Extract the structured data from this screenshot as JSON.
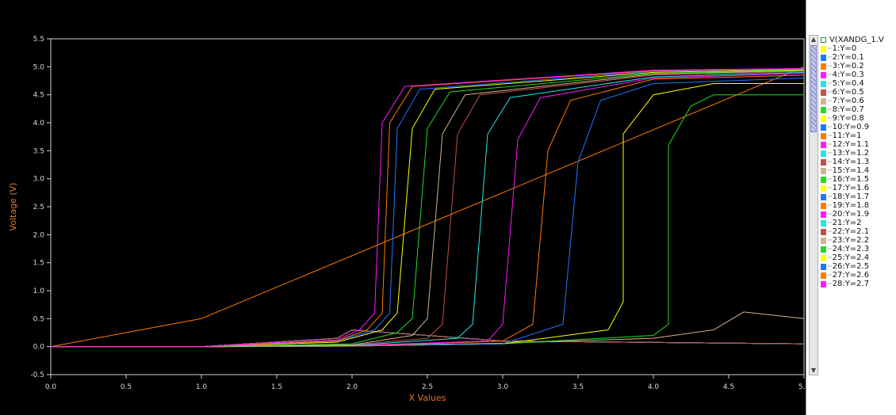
{
  "legend_header": "V(XANDG_1.V",
  "chart_data": {
    "type": "line",
    "title": "",
    "xlabel": "X Values",
    "ylabel": "Voltage (V)",
    "xlim": [
      0,
      5
    ],
    "ylim": [
      -0.5,
      5.5
    ],
    "x_ticks": [
      "0.0",
      "0.5",
      "1.0",
      "1.5",
      "2.0",
      "2.5",
      "3.0",
      "3.5",
      "4.0",
      "4.5",
      "5.0"
    ],
    "y_ticks": [
      "5.5",
      "5.0",
      "4.5",
      "4.0",
      "3.5",
      "3.0",
      "2.5",
      "2.0",
      "1.5",
      "1.0",
      "0.5",
      "0.0",
      "-0.5"
    ],
    "grid": false,
    "legend": "right",
    "series": [
      {
        "name": "1:Y=0",
        "color": "#ffff00",
        "points": [
          [
            0,
            0
          ],
          [
            1.0,
            0.0
          ],
          [
            1.9,
            0.15
          ],
          [
            2.0,
            0.3
          ],
          [
            3,
            0.1
          ],
          [
            5,
            0.05
          ]
        ]
      },
      {
        "name": "2:Y=0.1",
        "color": "#1e78ff",
        "points": [
          [
            0,
            0
          ],
          [
            1.0,
            0.0
          ],
          [
            1.9,
            0.15
          ],
          [
            2.0,
            0.3
          ],
          [
            3,
            0.1
          ],
          [
            5,
            0.05
          ]
        ]
      },
      {
        "name": "3:Y=0.2",
        "color": "#ff7a00",
        "points": [
          [
            0,
            0
          ],
          [
            1.0,
            0.0
          ],
          [
            1.9,
            0.15
          ],
          [
            2.0,
            0.3
          ],
          [
            3,
            0.1
          ],
          [
            5,
            0.05
          ]
        ]
      },
      {
        "name": "4:Y=0.3",
        "color": "#ff1aff",
        "points": [
          [
            0,
            0
          ],
          [
            1.0,
            0.0
          ],
          [
            1.9,
            0.15
          ],
          [
            2.0,
            0.3
          ],
          [
            3,
            0.1
          ],
          [
            5,
            0.05
          ]
        ]
      },
      {
        "name": "5:Y=0.4",
        "color": "#22e6e6",
        "points": [
          [
            0,
            0
          ],
          [
            1.0,
            0.0
          ],
          [
            1.9,
            0.15
          ],
          [
            2.0,
            0.3
          ],
          [
            3,
            0.1
          ],
          [
            5,
            0.05
          ]
        ]
      },
      {
        "name": "6:Y=0.5",
        "color": "#c0504d",
        "points": [
          [
            0,
            0
          ],
          [
            1.0,
            0.0
          ],
          [
            1.9,
            0.15
          ],
          [
            2.0,
            0.3
          ],
          [
            3,
            0.1
          ],
          [
            5,
            0.05
          ]
        ]
      },
      {
        "name": "7:Y=0.6",
        "color": "#d2b48c",
        "points": [
          [
            0,
            0
          ],
          [
            1.0,
            0.0
          ],
          [
            1.9,
            0.15
          ],
          [
            2.0,
            0.3
          ],
          [
            3,
            0.1
          ],
          [
            5,
            0.05
          ]
        ]
      },
      {
        "name": "8:Y=0.7",
        "color": "#22dd22",
        "points": [
          [
            0,
            0
          ],
          [
            1.0,
            0.0
          ],
          [
            1.9,
            0.15
          ],
          [
            2.0,
            0.3
          ],
          [
            3,
            0.1
          ],
          [
            5,
            0.05
          ]
        ]
      },
      {
        "name": "9:Y=0.8",
        "color": "#ffff00",
        "points": [
          [
            0,
            0
          ],
          [
            1.0,
            0.0
          ],
          [
            1.9,
            0.15
          ],
          [
            2.0,
            0.3
          ],
          [
            3,
            0.1
          ],
          [
            5,
            0.05
          ]
        ]
      },
      {
        "name": "10:Y=0.9",
        "color": "#1e78ff",
        "points": [
          [
            0,
            0
          ],
          [
            1.0,
            0.0
          ],
          [
            1.9,
            0.15
          ],
          [
            2.0,
            0.3
          ],
          [
            3,
            0.1
          ],
          [
            5,
            0.05
          ]
        ]
      },
      {
        "name": "11:Y=1",
        "color": "#ff7a00",
        "points": [
          [
            0,
            0
          ],
          [
            1.0,
            0.5
          ],
          [
            5,
            5.0
          ]
        ]
      },
      {
        "name": "12:Y=1.1",
        "color": "#ff1aff",
        "points": [
          [
            0,
            0
          ],
          [
            1.0,
            0.0
          ],
          [
            1.9,
            0.15
          ],
          [
            2.0,
            0.3
          ],
          [
            3,
            0.1
          ],
          [
            5,
            0.05
          ]
        ]
      },
      {
        "name": "13:Y=1.2",
        "color": "#22e6e6",
        "points": [
          [
            0,
            0
          ],
          [
            1.0,
            0.0
          ],
          [
            1.9,
            0.15
          ],
          [
            2.0,
            0.3
          ],
          [
            3,
            0.1
          ],
          [
            5,
            0.05
          ]
        ]
      },
      {
        "name": "14:Y=1.3",
        "color": "#c0504d",
        "points": [
          [
            0,
            0
          ],
          [
            1.0,
            0.0
          ],
          [
            1.9,
            0.15
          ],
          [
            2.0,
            0.3
          ],
          [
            3,
            0.1
          ],
          [
            5,
            0.05
          ]
        ]
      },
      {
        "name": "15:Y=1.4",
        "color": "#d2b48c",
        "points": [
          [
            0,
            0
          ],
          [
            1.0,
            0.0
          ],
          [
            2.0,
            0.02
          ],
          [
            3,
            0.06
          ],
          [
            4,
            0.15
          ],
          [
            4.4,
            0.3
          ],
          [
            4.6,
            0.62
          ],
          [
            5,
            0.5
          ]
        ]
      },
      {
        "name": "16:Y=1.5",
        "color": "#22dd22",
        "points": [
          [
            0,
            0
          ],
          [
            1.0,
            0.0
          ],
          [
            2.0,
            0.01
          ],
          [
            3,
            0.05
          ],
          [
            4,
            0.2
          ],
          [
            4.1,
            0.4
          ],
          [
            4.1,
            3.6
          ],
          [
            4.25,
            4.3
          ],
          [
            4.4,
            4.5
          ],
          [
            5,
            4.5
          ]
        ]
      },
      {
        "name": "17:Y=1.6",
        "color": "#ffff00",
        "points": [
          [
            0,
            0
          ],
          [
            1.0,
            0.0
          ],
          [
            2.0,
            0.01
          ],
          [
            3,
            0.05
          ],
          [
            3.7,
            0.3
          ],
          [
            3.8,
            0.8
          ],
          [
            3.8,
            3.8
          ],
          [
            4.0,
            4.5
          ],
          [
            4.4,
            4.7
          ],
          [
            5,
            4.7
          ]
        ]
      },
      {
        "name": "18:Y=1.7",
        "color": "#1e78ff",
        "points": [
          [
            0,
            0
          ],
          [
            1.0,
            0.0
          ],
          [
            2.0,
            0.01
          ],
          [
            3,
            0.05
          ],
          [
            3.4,
            0.4
          ],
          [
            3.5,
            3.3
          ],
          [
            3.65,
            4.4
          ],
          [
            4.0,
            4.7
          ],
          [
            5,
            4.8
          ]
        ]
      },
      {
        "name": "19:Y=1.8",
        "color": "#ff7a00",
        "points": [
          [
            0,
            0
          ],
          [
            1.0,
            0.0
          ],
          [
            2.0,
            0.01
          ],
          [
            3,
            0.1
          ],
          [
            3.2,
            0.4
          ],
          [
            3.3,
            3.5
          ],
          [
            3.45,
            4.4
          ],
          [
            4.0,
            4.78
          ],
          [
            5,
            4.85
          ]
        ]
      },
      {
        "name": "20:Y=1.9",
        "color": "#ff1aff",
        "points": [
          [
            0,
            0
          ],
          [
            1.0,
            0.0
          ],
          [
            2.0,
            0.02
          ],
          [
            2.9,
            0.1
          ],
          [
            3.0,
            0.4
          ],
          [
            3.1,
            3.7
          ],
          [
            3.25,
            4.45
          ],
          [
            4.0,
            4.8
          ],
          [
            5,
            4.88
          ]
        ]
      },
      {
        "name": "21:Y=2",
        "color": "#22e6e6",
        "points": [
          [
            0,
            0
          ],
          [
            1.0,
            0.0
          ],
          [
            2.0,
            0.02
          ],
          [
            2.7,
            0.15
          ],
          [
            2.8,
            0.4
          ],
          [
            2.9,
            3.8
          ],
          [
            3.05,
            4.45
          ],
          [
            4.0,
            4.82
          ],
          [
            5,
            4.9
          ]
        ]
      },
      {
        "name": "22:Y=2.1",
        "color": "#c0504d",
        "points": [
          [
            0,
            0
          ],
          [
            1.0,
            0.0
          ],
          [
            2.0,
            0.03
          ],
          [
            2.5,
            0.15
          ],
          [
            2.6,
            0.4
          ],
          [
            2.7,
            3.8
          ],
          [
            2.85,
            4.5
          ],
          [
            4.0,
            4.85
          ],
          [
            5,
            4.92
          ]
        ]
      },
      {
        "name": "23:Y=2.2",
        "color": "#d2b48c",
        "points": [
          [
            0,
            0
          ],
          [
            1.0,
            0.0
          ],
          [
            2.0,
            0.03
          ],
          [
            2.4,
            0.2
          ],
          [
            2.5,
            0.5
          ],
          [
            2.6,
            3.8
          ],
          [
            2.75,
            4.5
          ],
          [
            4.0,
            4.87
          ],
          [
            5,
            4.93
          ]
        ]
      },
      {
        "name": "24:Y=2.3",
        "color": "#22dd22",
        "points": [
          [
            0,
            0
          ],
          [
            1.0,
            0.0
          ],
          [
            2.0,
            0.05
          ],
          [
            2.3,
            0.25
          ],
          [
            2.4,
            0.5
          ],
          [
            2.5,
            3.9
          ],
          [
            2.65,
            4.55
          ],
          [
            4.0,
            4.88
          ],
          [
            5,
            4.94
          ]
        ]
      },
      {
        "name": "25:Y=2.4",
        "color": "#ffff00",
        "points": [
          [
            0,
            0
          ],
          [
            1.0,
            0.0
          ],
          [
            1.9,
            0.08
          ],
          [
            2.2,
            0.3
          ],
          [
            2.3,
            0.6
          ],
          [
            2.4,
            3.9
          ],
          [
            2.55,
            4.6
          ],
          [
            4.0,
            4.9
          ],
          [
            5,
            4.95
          ]
        ]
      },
      {
        "name": "26:Y=2.5",
        "color": "#1e78ff",
        "points": [
          [
            0,
            0
          ],
          [
            1.0,
            0.0
          ],
          [
            1.9,
            0.1
          ],
          [
            2.15,
            0.3
          ],
          [
            2.25,
            0.6
          ],
          [
            2.3,
            3.9
          ],
          [
            2.45,
            4.6
          ],
          [
            4.0,
            4.92
          ],
          [
            5,
            4.96
          ]
        ]
      },
      {
        "name": "27:Y=2.6",
        "color": "#ff7a00",
        "points": [
          [
            0,
            0
          ],
          [
            1.0,
            0.0
          ],
          [
            1.9,
            0.1
          ],
          [
            2.1,
            0.3
          ],
          [
            2.2,
            0.6
          ],
          [
            2.25,
            4.0
          ],
          [
            2.4,
            4.65
          ],
          [
            4.0,
            4.93
          ],
          [
            5,
            4.97
          ]
        ]
      },
      {
        "name": "28:Y=2.7",
        "color": "#ff1aff",
        "points": [
          [
            0,
            0
          ],
          [
            1.0,
            0.0
          ],
          [
            1.9,
            0.12
          ],
          [
            2.05,
            0.3
          ],
          [
            2.15,
            0.6
          ],
          [
            2.2,
            4.0
          ],
          [
            2.35,
            4.65
          ],
          [
            4.0,
            4.94
          ],
          [
            5,
            4.97
          ]
        ]
      }
    ]
  }
}
